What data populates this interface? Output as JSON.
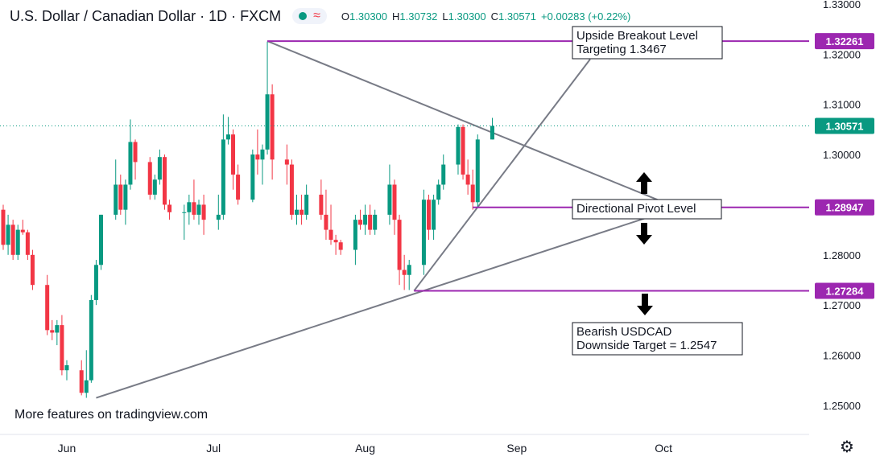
{
  "header": {
    "title": "U.S. Dollar / Canadian Dollar · 1D · FXCM",
    "ohlc": {
      "open_label": "O",
      "open": "1.30300",
      "high_label": "H",
      "high": "1.30732",
      "low_label": "L",
      "low": "1.30300",
      "close_label": "C",
      "close": "1.30571",
      "change": "+0.00283 (+0.22%)"
    },
    "status_icons": [
      "market-open-dot-icon",
      "wave-icon"
    ]
  },
  "footer": {
    "text": "More features on tradingview.com"
  },
  "colors": {
    "up": "#089981",
    "down": "#f23645",
    "level": "#9c27b0",
    "trend": "#787b86",
    "last": "#089981"
  },
  "chart_data": {
    "type": "candlestick",
    "ylim": [
      1.245,
      1.33
    ],
    "y_ticks": [
      "1.33000",
      "1.32000",
      "1.31000",
      "1.30000",
      "1.29000",
      "1.28000",
      "1.27000",
      "1.26000",
      "1.25000"
    ],
    "y_tick_values": [
      1.33,
      1.32,
      1.31,
      1.3,
      1.29,
      1.28,
      1.27,
      1.26,
      1.25
    ],
    "x_labels": [
      {
        "label": "Jun",
        "day": 13
      },
      {
        "label": "Jul",
        "day": 43
      },
      {
        "label": "Aug",
        "day": 74
      },
      {
        "label": "Sep",
        "day": 105
      },
      {
        "label": "Oct",
        "day": 135
      }
    ],
    "candles": [
      {
        "d": 0,
        "o": 1.289,
        "h": 1.29,
        "l": 1.281,
        "c": 1.282
      },
      {
        "d": 1,
        "o": 1.282,
        "h": 1.288,
        "l": 1.28,
        "c": 1.286
      },
      {
        "d": 2,
        "o": 1.286,
        "h": 1.287,
        "l": 1.279,
        "c": 1.28
      },
      {
        "d": 3,
        "o": 1.28,
        "h": 1.286,
        "l": 1.279,
        "c": 1.285
      },
      {
        "d": 4,
        "o": 1.285,
        "h": 1.287,
        "l": 1.284,
        "c": 1.2845
      },
      {
        "d": 5,
        "o": 1.2845,
        "h": 1.285,
        "l": 1.279,
        "c": 1.28
      },
      {
        "d": 6,
        "o": 1.28,
        "h": 1.281,
        "l": 1.273,
        "c": 1.274
      },
      {
        "d": 9,
        "o": 1.274,
        "h": 1.276,
        "l": 1.264,
        "c": 1.265
      },
      {
        "d": 10,
        "o": 1.265,
        "h": 1.267,
        "l": 1.263,
        "c": 1.2645
      },
      {
        "d": 11,
        "o": 1.2645,
        "h": 1.267,
        "l": 1.262,
        "c": 1.266
      },
      {
        "d": 12,
        "o": 1.266,
        "h": 1.268,
        "l": 1.256,
        "c": 1.257
      },
      {
        "d": 13,
        "o": 1.257,
        "h": 1.259,
        "l": 1.255,
        "c": 1.258
      },
      {
        "d": 16,
        "o": 1.257,
        "h": 1.259,
        "l": 1.252,
        "c": 1.2525
      },
      {
        "d": 17,
        "o": 1.2525,
        "h": 1.261,
        "l": 1.2515,
        "c": 1.255
      },
      {
        "d": 18,
        "o": 1.255,
        "h": 1.272,
        "l": 1.2545,
        "c": 1.271
      },
      {
        "d": 19,
        "o": 1.271,
        "h": 1.279,
        "l": 1.27,
        "c": 1.278
      },
      {
        "d": 20,
        "o": 1.278,
        "h": 1.288,
        "l": 1.277,
        "c": 1.288
      },
      {
        "d": 23,
        "o": 1.288,
        "h": 1.299,
        "l": 1.287,
        "c": 1.294
      },
      {
        "d": 24,
        "o": 1.294,
        "h": 1.296,
        "l": 1.288,
        "c": 1.289
      },
      {
        "d": 25,
        "o": 1.289,
        "h": 1.295,
        "l": 1.286,
        "c": 1.294
      },
      {
        "d": 26,
        "o": 1.294,
        "h": 1.307,
        "l": 1.293,
        "c": 1.3025
      },
      {
        "d": 27,
        "o": 1.3025,
        "h": 1.303,
        "l": 1.295,
        "c": 1.2985
      },
      {
        "d": 30,
        "o": 1.2985,
        "h": 1.2995,
        "l": 1.291,
        "c": 1.292
      },
      {
        "d": 31,
        "o": 1.292,
        "h": 1.296,
        "l": 1.291,
        "c": 1.295
      },
      {
        "d": 32,
        "o": 1.295,
        "h": 1.301,
        "l": 1.294,
        "c": 1.2995
      },
      {
        "d": 33,
        "o": 1.2995,
        "h": 1.3,
        "l": 1.289,
        "c": 1.29
      },
      {
        "d": 34,
        "o": 1.29,
        "h": 1.291,
        "l": 1.287,
        "c": 1.2885
      },
      {
        "d": 37,
        "o": 1.2885,
        "h": 1.29,
        "l": 1.283,
        "c": 1.2885
      },
      {
        "d": 38,
        "o": 1.2885,
        "h": 1.292,
        "l": 1.286,
        "c": 1.2905
      },
      {
        "d": 39,
        "o": 1.2905,
        "h": 1.295,
        "l": 1.287,
        "c": 1.288
      },
      {
        "d": 40,
        "o": 1.288,
        "h": 1.291,
        "l": 1.286,
        "c": 1.29
      },
      {
        "d": 41,
        "o": 1.29,
        "h": 1.292,
        "l": 1.284,
        "c": 1.287
      },
      {
        "d": 44,
        "o": 1.287,
        "h": 1.292,
        "l": 1.285,
        "c": 1.288
      },
      {
        "d": 45,
        "o": 1.288,
        "h": 1.308,
        "l": 1.287,
        "c": 1.303
      },
      {
        "d": 46,
        "o": 1.303,
        "h": 1.3075,
        "l": 1.302,
        "c": 1.304
      },
      {
        "d": 47,
        "o": 1.304,
        "h": 1.305,
        "l": 1.293,
        "c": 1.296
      },
      {
        "d": 48,
        "o": 1.296,
        "h": 1.298,
        "l": 1.29,
        "c": 1.291
      },
      {
        "d": 51,
        "o": 1.291,
        "h": 1.301,
        "l": 1.2905,
        "c": 1.3
      },
      {
        "d": 52,
        "o": 1.3,
        "h": 1.305,
        "l": 1.296,
        "c": 1.299
      },
      {
        "d": 53,
        "o": 1.299,
        "h": 1.302,
        "l": 1.294,
        "c": 1.301
      },
      {
        "d": 54,
        "o": 1.301,
        "h": 1.3225,
        "l": 1.3,
        "c": 1.312
      },
      {
        "d": 55,
        "o": 1.312,
        "h": 1.314,
        "l": 1.295,
        "c": 1.299
      },
      {
        "d": 58,
        "o": 1.299,
        "h": 1.302,
        "l": 1.294,
        "c": 1.298
      },
      {
        "d": 59,
        "o": 1.298,
        "h": 1.299,
        "l": 1.287,
        "c": 1.288
      },
      {
        "d": 60,
        "o": 1.288,
        "h": 1.292,
        "l": 1.286,
        "c": 1.289
      },
      {
        "d": 61,
        "o": 1.289,
        "h": 1.292,
        "l": 1.286,
        "c": 1.288
      },
      {
        "d": 62,
        "o": 1.288,
        "h": 1.294,
        "l": 1.287,
        "c": 1.292
      },
      {
        "d": 65,
        "o": 1.292,
        "h": 1.295,
        "l": 1.287,
        "c": 1.288
      },
      {
        "d": 66,
        "o": 1.288,
        "h": 1.293,
        "l": 1.283,
        "c": 1.285
      },
      {
        "d": 67,
        "o": 1.285,
        "h": 1.29,
        "l": 1.282,
        "c": 1.283
      },
      {
        "d": 68,
        "o": 1.283,
        "h": 1.284,
        "l": 1.28,
        "c": 1.2825
      },
      {
        "d": 69,
        "o": 1.2825,
        "h": 1.283,
        "l": 1.28,
        "c": 1.281
      },
      {
        "d": 72,
        "o": 1.281,
        "h": 1.288,
        "l": 1.278,
        "c": 1.287
      },
      {
        "d": 73,
        "o": 1.287,
        "h": 1.289,
        "l": 1.285,
        "c": 1.286
      },
      {
        "d": 74,
        "o": 1.286,
        "h": 1.29,
        "l": 1.284,
        "c": 1.288
      },
      {
        "d": 75,
        "o": 1.288,
        "h": 1.29,
        "l": 1.284,
        "c": 1.285
      },
      {
        "d": 76,
        "o": 1.285,
        "h": 1.289,
        "l": 1.284,
        "c": 1.288
      },
      {
        "d": 79,
        "o": 1.288,
        "h": 1.298,
        "l": 1.286,
        "c": 1.294
      },
      {
        "d": 80,
        "o": 1.294,
        "h": 1.295,
        "l": 1.284,
        "c": 1.287
      },
      {
        "d": 81,
        "o": 1.287,
        "h": 1.288,
        "l": 1.274,
        "c": 1.277
      },
      {
        "d": 82,
        "o": 1.277,
        "h": 1.28,
        "l": 1.273,
        "c": 1.276
      },
      {
        "d": 83,
        "o": 1.276,
        "h": 1.279,
        "l": 1.273,
        "c": 1.278
      },
      {
        "d": 86,
        "o": 1.278,
        "h": 1.293,
        "l": 1.276,
        "c": 1.291
      },
      {
        "d": 87,
        "o": 1.291,
        "h": 1.292,
        "l": 1.283,
        "c": 1.285
      },
      {
        "d": 88,
        "o": 1.285,
        "h": 1.292,
        "l": 1.283,
        "c": 1.291
      },
      {
        "d": 89,
        "o": 1.291,
        "h": 1.295,
        "l": 1.29,
        "c": 1.294
      },
      {
        "d": 90,
        "o": 1.294,
        "h": 1.3,
        "l": 1.293,
        "c": 1.298
      },
      {
        "d": 93,
        "o": 1.298,
        "h": 1.306,
        "l": 1.296,
        "c": 1.3055
      },
      {
        "d": 94,
        "o": 1.3055,
        "h": 1.306,
        "l": 1.295,
        "c": 1.296
      },
      {
        "d": 95,
        "o": 1.296,
        "h": 1.299,
        "l": 1.292,
        "c": 1.294
      },
      {
        "d": 96,
        "o": 1.294,
        "h": 1.297,
        "l": 1.289,
        "c": 1.2905
      },
      {
        "d": 97,
        "o": 1.2905,
        "h": 1.304,
        "l": 1.2895,
        "c": 1.303
      },
      {
        "d": 100,
        "o": 1.303,
        "h": 1.3073,
        "l": 1.303,
        "c": 1.3057
      }
    ],
    "levels": [
      {
        "name": "upside-breakout-level",
        "value": 1.32261,
        "label": "1.32261",
        "from_day": 54
      },
      {
        "name": "directional-pivot-level",
        "value": 1.28947,
        "label": "1.28947",
        "from_day": 96
      },
      {
        "name": "support-level",
        "value": 1.27284,
        "label": "1.27284",
        "from_day": 84
      }
    ],
    "last_price": {
      "value": 1.30571,
      "label": "1.30571"
    },
    "trendlines": [
      {
        "name": "descending-resistance-line",
        "p1": {
          "d": 54,
          "v": 1.32261
        },
        "p2": {
          "d": 135,
          "v": 1.2905
        }
      },
      {
        "name": "ascending-support-line",
        "p1": {
          "d": 19,
          "v": 1.2515
        },
        "p2": {
          "d": 135,
          "v": 1.2885
        }
      },
      {
        "name": "ascending-breakout-line",
        "p1": {
          "d": 84,
          "v": 1.27284
        },
        "p2": {
          "d": 120,
          "v": 1.319
        }
      }
    ],
    "annotations": [
      {
        "name": "upside-breakout-callout",
        "lines": [
          "Upside Breakout Level",
          "Targeting 1.3467"
        ]
      },
      {
        "name": "directional-pivot-callout",
        "lines": [
          "Directional Pivot Level"
        ]
      },
      {
        "name": "bearish-target-callout",
        "lines": [
          "Bearish USDCAD",
          "Downside Target = 1.2547"
        ]
      }
    ],
    "arrows": [
      {
        "name": "pivot-up-arrow-icon",
        "direction": "up"
      },
      {
        "name": "pivot-down-arrow-icon",
        "direction": "down"
      },
      {
        "name": "bearish-down-arrow-icon",
        "direction": "down"
      }
    ]
  }
}
